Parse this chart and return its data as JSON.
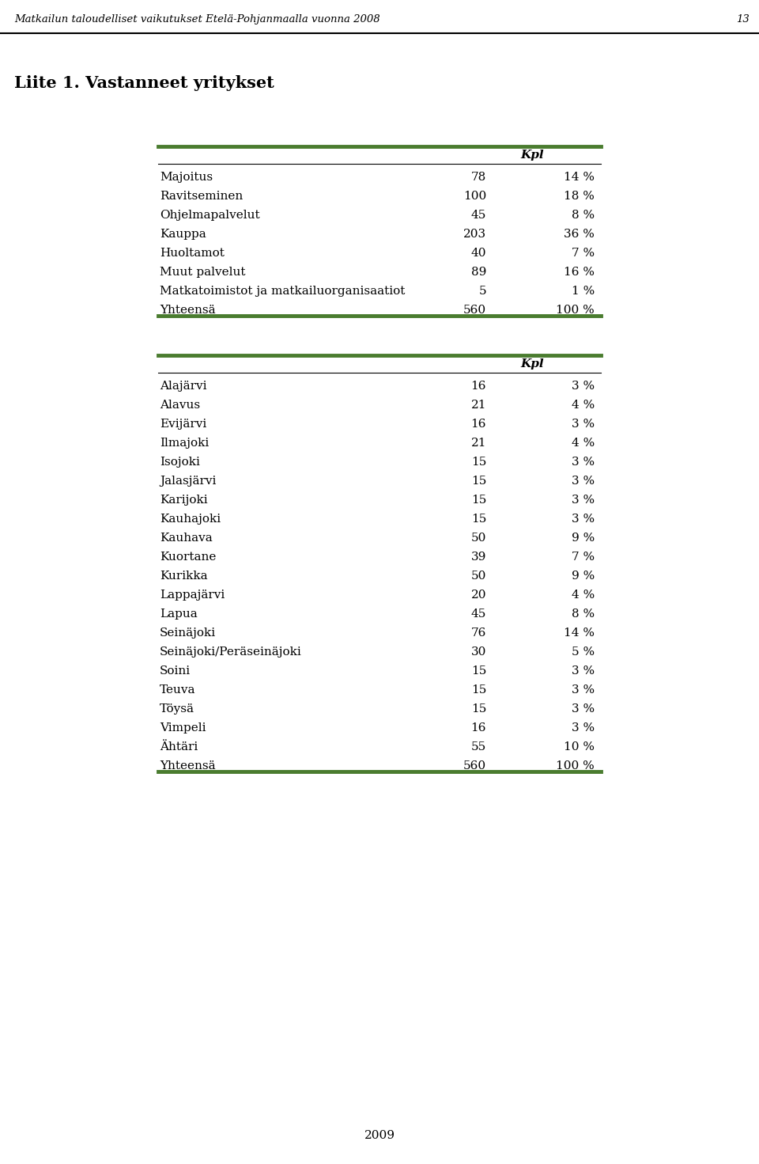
{
  "header_title": "Matkailun taloudelliset vaikutukset Etelä-Pohjanmaalla vuonna 2008",
  "header_page": "13",
  "section_title": "Liite 1. Vastanneet yritykset",
  "table1_rows": [
    [
      "Majoitus",
      "78",
      "14 %"
    ],
    [
      "Ravitseminen",
      "100",
      "18 %"
    ],
    [
      "Ohjelmapalvelut",
      "45",
      "8 %"
    ],
    [
      "Kauppa",
      "203",
      "36 %"
    ],
    [
      "Huoltamot",
      "40",
      "7 %"
    ],
    [
      "Muut palvelut",
      "89",
      "16 %"
    ],
    [
      "Matkatoimistot ja matkailuorganisaatiot",
      "5",
      "1 %"
    ],
    [
      "Yhteensä",
      "560",
      "100 %"
    ]
  ],
  "table2_rows": [
    [
      "Alajärvi",
      "16",
      "3 %"
    ],
    [
      "Alavus",
      "21",
      "4 %"
    ],
    [
      "Evijärvi",
      "16",
      "3 %"
    ],
    [
      "Ilmajoki",
      "21",
      "4 %"
    ],
    [
      "Isojoki",
      "15",
      "3 %"
    ],
    [
      "Jalasjärvi",
      "15",
      "3 %"
    ],
    [
      "Karijoki",
      "15",
      "3 %"
    ],
    [
      "Kauhajoki",
      "15",
      "3 %"
    ],
    [
      "Kauhava",
      "50",
      "9 %"
    ],
    [
      "Kuortane",
      "39",
      "7 %"
    ],
    [
      "Kurikka",
      "50",
      "9 %"
    ],
    [
      "Lappajärvi",
      "20",
      "4 %"
    ],
    [
      "Lapua",
      "45",
      "8 %"
    ],
    [
      "Seinäjoki",
      "76",
      "14 %"
    ],
    [
      "Seinäjoki/Peräseinäjoki",
      "30",
      "5 %"
    ],
    [
      "Soini",
      "15",
      "3 %"
    ],
    [
      "Teuva",
      "15",
      "3 %"
    ],
    [
      "Töysä",
      "15",
      "3 %"
    ],
    [
      "Vimpeli",
      "16",
      "3 %"
    ],
    [
      "Ähtäri",
      "55",
      "10 %"
    ],
    [
      "Yhteensä",
      "560",
      "100 %"
    ]
  ],
  "footer_year": "2009",
  "green_color": "#4a7c2f",
  "bg_color": "#ffffff",
  "text_color": "#000000"
}
